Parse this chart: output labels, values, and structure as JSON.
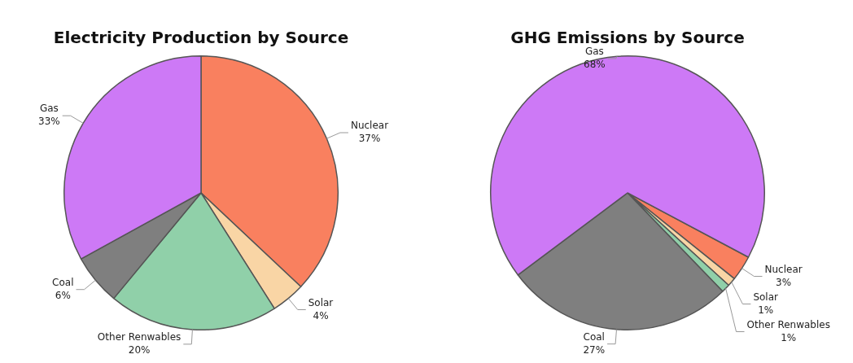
{
  "chart_data": [
    {
      "type": "pie",
      "title": "Electricity Production by Source",
      "categories": [
        "Nuclear",
        "Solar",
        "Other Renwables",
        "Coal",
        "Gas"
      ],
      "values": [
        37,
        4,
        20,
        6,
        33
      ],
      "value_labels": [
        "37%",
        "4%",
        "20%",
        "6%",
        "33%"
      ],
      "colors": [
        "#f9805f",
        "#f9d5a5",
        "#90d0a9",
        "#7f7f7f",
        "#cd79f6"
      ],
      "legend": false
    },
    {
      "type": "pie",
      "title": "GHG Emissions by Source",
      "categories": [
        "Nuclear",
        "Solar",
        "Other Renwables",
        "Coal",
        "Gas"
      ],
      "values": [
        3,
        1,
        1,
        27,
        68
      ],
      "value_labels": [
        "3%",
        "1%",
        "1%",
        "27%",
        "68%"
      ],
      "colors": [
        "#f9805f",
        "#f9d5a5",
        "#90d0a9",
        "#7f7f7f",
        "#cd79f6"
      ],
      "legend": false
    }
  ]
}
